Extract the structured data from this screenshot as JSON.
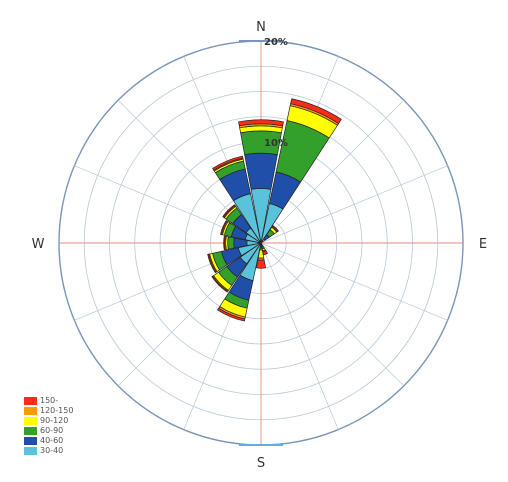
{
  "chart_data": {
    "type": "wind-rose",
    "directions": [
      "N",
      "NNE",
      "NE",
      "ENE",
      "E",
      "ESE",
      "SE",
      "SSE",
      "S",
      "SSW",
      "SW",
      "WSW",
      "W",
      "WNW",
      "NW",
      "NNW"
    ],
    "direction_labels": {
      "N": "N",
      "E": "E",
      "S": "S",
      "W": "W"
    },
    "ring_labels": [
      "10%",
      "20%"
    ],
    "radial_max_percent": 20,
    "series": [
      {
        "name": "30-40",
        "color": "#5bc2dc",
        "values": [
          5.4,
          4.0,
          0.5,
          0,
          0,
          0,
          0,
          0.2,
          0.3,
          3.8,
          2.5,
          2.3,
          1.4,
          1.6,
          1.8,
          5.0
        ]
      },
      {
        "name": "40-60",
        "color": "#1f4fa8",
        "values": [
          3.5,
          3.2,
          0.5,
          0,
          0,
          0,
          0,
          0.2,
          0.2,
          2.0,
          1.6,
          1.7,
          1.3,
          1.4,
          1.6,
          2.5
        ]
      },
      {
        "name": "60-90",
        "color": "#33a02c",
        "values": [
          2.2,
          5.2,
          0.6,
          0,
          0,
          0,
          0,
          0.2,
          0.2,
          0.8,
          1.0,
          0.9,
          0.6,
          0.7,
          0.8,
          0.8
        ]
      },
      {
        "name": "90-120",
        "color": "#ffff00",
        "values": [
          0.5,
          1.5,
          0.3,
          0,
          0,
          0,
          0,
          0.2,
          0.8,
          0.9,
          0.6,
          0.3,
          0.2,
          0.2,
          0.2,
          0.2
        ]
      },
      {
        "name": "120-150",
        "color": "#ff9900",
        "values": [
          0.2,
          0.2,
          0.1,
          0,
          0,
          0,
          0,
          0.1,
          0.2,
          0.2,
          0.1,
          0.1,
          0.1,
          0.1,
          0.1,
          0.1
        ]
      },
      {
        "name": "150-",
        "color": "#ff2a1a",
        "values": [
          0.4,
          0.5,
          0.1,
          0,
          0,
          0,
          0,
          0.3,
          0.8,
          0.2,
          0.1,
          0.1,
          0.1,
          0.1,
          0.1,
          0.2
        ]
      }
    ],
    "legend_order": [
      "150-",
      "120-150",
      "90-120",
      "60-90",
      "40-60",
      "30-40"
    ],
    "legend_placement": "bottom-left",
    "grid": true,
    "colors": {
      "grid": "#b8c8d8",
      "axis": "#e88a7a",
      "outer_ring": "#7a95b8",
      "outline": "#222222"
    }
  }
}
